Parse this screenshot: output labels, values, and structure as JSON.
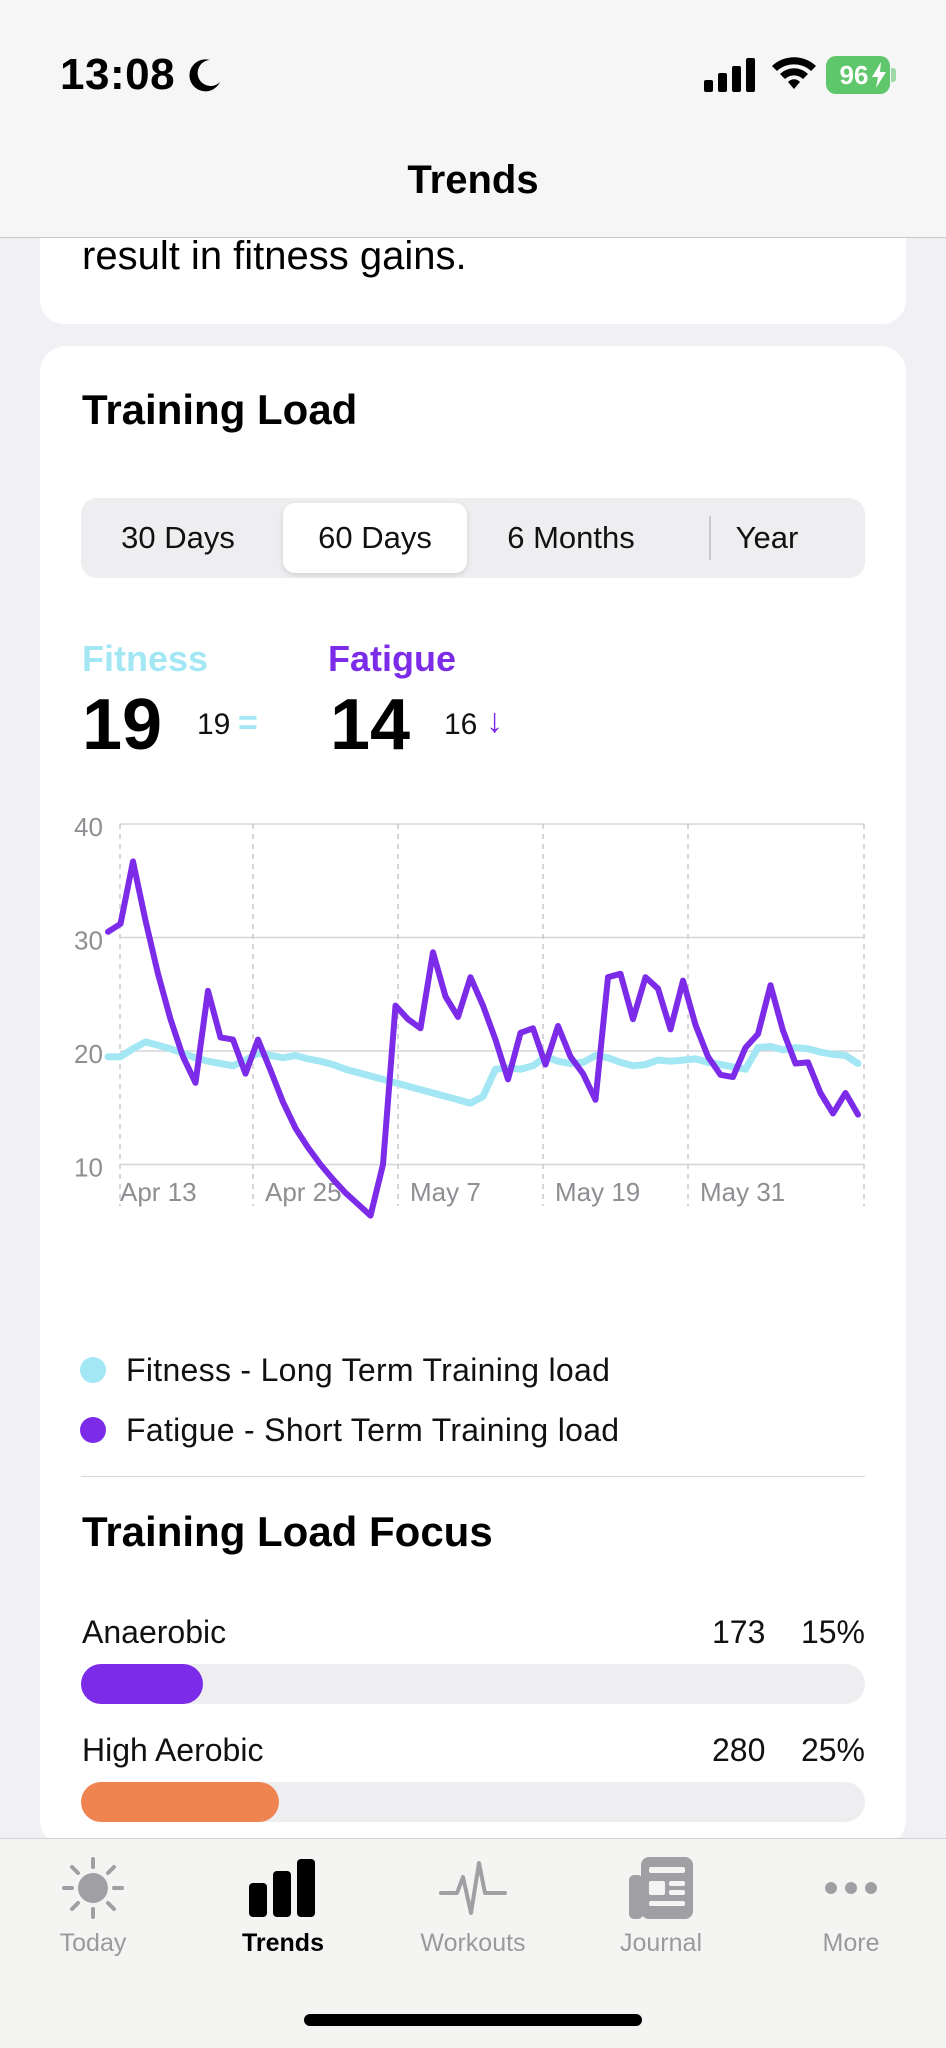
{
  "status_bar": {
    "time": "13:08",
    "battery": "96"
  },
  "nav": {
    "title": "Trends"
  },
  "prev_card": {
    "text": "result in fitness gains."
  },
  "training_load": {
    "title": "Training Load",
    "tabs": [
      {
        "label": "30 Days",
        "active": false
      },
      {
        "label": "60 Days",
        "active": true
      },
      {
        "label": "6 Months",
        "active": false
      },
      {
        "label": "Year",
        "active": false
      }
    ],
    "fitness": {
      "label": "Fitness",
      "value": "19",
      "previous": "19",
      "trend": "="
    },
    "fatigue": {
      "label": "Fatigue",
      "value": "14",
      "previous": "16",
      "trend": "↓"
    },
    "legend": [
      {
        "label": "Fitness - Long Term Training load",
        "color": "#a3e7f5"
      },
      {
        "label": "Fatigue - Short Term Training load",
        "color": "#7c2ce8"
      }
    ]
  },
  "chart_data": {
    "type": "line",
    "y_ticks": [
      "40",
      "30",
      "20",
      "10"
    ],
    "ylim": [
      0,
      40
    ],
    "x_tick_labels": [
      "Apr 13",
      "Apr 25",
      "May 7",
      "May 19",
      "May 31"
    ],
    "x_count": 61,
    "grid": true,
    "series": [
      {
        "name": "Fitness",
        "color": "#a3e7f5",
        "values": [
          19.5,
          19.5,
          20.2,
          20.8,
          20.5,
          20.2,
          19.8,
          19.4,
          19.1,
          18.9,
          18.7,
          19.2,
          19.8,
          19.6,
          19.4,
          19.6,
          19.3,
          19.1,
          18.8,
          18.4,
          18.1,
          17.8,
          17.5,
          17.2,
          16.9,
          16.6,
          16.3,
          16.0,
          15.7,
          15.4,
          16.0,
          18.4,
          18.5,
          18.4,
          18.7,
          19.5,
          19.1,
          18.9,
          19.0,
          19.6,
          19.4,
          19.0,
          18.7,
          18.8,
          19.2,
          19.1,
          19.2,
          19.3,
          19.0,
          18.8,
          18.6,
          18.4,
          20.3,
          20.4,
          20.1,
          20.3,
          20.2,
          19.9,
          19.7,
          19.6,
          18.9
        ]
      },
      {
        "name": "Fatigue",
        "color": "#7c2ce8",
        "values": [
          30.5,
          31.2,
          36.7,
          31.5,
          26.8,
          22.8,
          19.5,
          17.2,
          25.3,
          21.2,
          21.0,
          18.0,
          21.0,
          18.3,
          15.5,
          13.2,
          11.5,
          10.0,
          8.7,
          7.5,
          6.5,
          5.5,
          10.0,
          24.0,
          22.8,
          22.0,
          28.7,
          24.8,
          23.0,
          26.5,
          24.0,
          21.0,
          17.5,
          21.6,
          22.0,
          18.8,
          22.2,
          19.5,
          18.0,
          15.7,
          26.5,
          26.8,
          22.8,
          26.5,
          25.5,
          21.9,
          26.2,
          22.3,
          19.5,
          17.9,
          17.7,
          20.3,
          21.5,
          25.8,
          21.8,
          18.9,
          19.0,
          16.3,
          14.5,
          16.3,
          14.4
        ]
      }
    ]
  },
  "focus": {
    "title": "Training Load Focus",
    "items": [
      {
        "name": "Anaerobic",
        "count": "173",
        "percent": "15%",
        "fill": 0.155,
        "color": "#7c2ce8"
      },
      {
        "name": "High Aerobic",
        "count": "280",
        "percent": "25%",
        "fill": 0.252,
        "color": "#f08450"
      }
    ]
  },
  "tab_bar": {
    "tabs": [
      {
        "label": "Today",
        "icon": "sun-icon",
        "active": false
      },
      {
        "label": "Trends",
        "icon": "bar-chart-icon",
        "active": true
      },
      {
        "label": "Workouts",
        "icon": "heartbeat-icon",
        "active": false
      },
      {
        "label": "Journal",
        "icon": "newspaper-icon",
        "active": false
      },
      {
        "label": "More",
        "icon": "ellipsis-icon",
        "active": false
      }
    ]
  }
}
